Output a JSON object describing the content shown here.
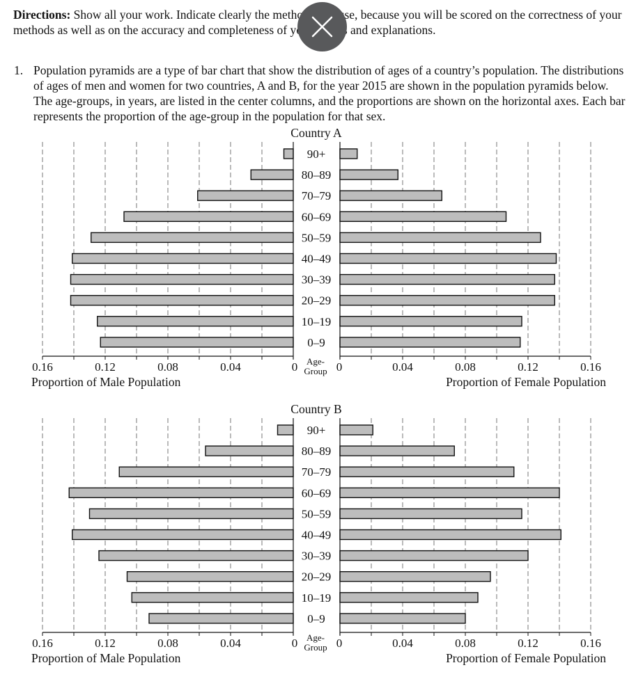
{
  "directions": {
    "label": "Directions:",
    "text": " Show all your work. Indicate clearly the methods you use, because you will be scored on the correctness of your methods as well as on the accuracy and completeness of your results and explanations."
  },
  "question": {
    "number": "1.",
    "text": "Population pyramids are a type of bar chart that show the distribution of ages of a country’s population. The distributions of ages of men and women for two countries, A and B, for the year 2015 are shown in the population pyramids below. The age-groups, in years, are listed in the center columns, and the proportions are shown on the horizontal axes. Each bar represents the proportion of the age-group in the population for that sex."
  },
  "overlay": {
    "icon": "close-icon",
    "color": "#58595b"
  },
  "chart_data": [
    {
      "type": "bar",
      "title": "Country A",
      "center_label": "Age-Group",
      "categories": [
        "90+",
        "80–89",
        "70–79",
        "60–69",
        "50–59",
        "40–49",
        "30–39",
        "20–29",
        "10–19",
        "0–9"
      ],
      "xlabel_left": "Proportion of Male Population",
      "xlabel_right": "Proportion of Female Population",
      "tick_labels_left": [
        "0.16",
        "0.12",
        "0.08",
        "0.04",
        "0"
      ],
      "tick_labels_right": [
        "0",
        "0.04",
        "0.08",
        "0.12",
        "0.16"
      ],
      "xlim": [
        0,
        0.16
      ],
      "grid": "dashed vertical every 0.02",
      "bar_color": "#bdbdbd",
      "series": [
        {
          "name": "Male",
          "values": [
            0.006,
            0.027,
            0.061,
            0.108,
            0.129,
            0.141,
            0.142,
            0.142,
            0.125,
            0.123
          ]
        },
        {
          "name": "Female",
          "values": [
            0.011,
            0.037,
            0.065,
            0.106,
            0.128,
            0.138,
            0.137,
            0.137,
            0.116,
            0.115
          ]
        }
      ]
    },
    {
      "type": "bar",
      "title": "Country B",
      "center_label": "Age-Group",
      "categories": [
        "90+",
        "80–89",
        "70–79",
        "60–69",
        "50–59",
        "40–49",
        "30–39",
        "20–29",
        "10–19",
        "0–9"
      ],
      "xlabel_left": "Proportion of Male Population",
      "xlabel_right": "Proportion of Female Population",
      "tick_labels_left": [
        "0.16",
        "0.12",
        "0.08",
        "0.04",
        "0"
      ],
      "tick_labels_right": [
        "0",
        "0.04",
        "0.08",
        "0.12",
        "0.16"
      ],
      "xlim": [
        0,
        0.16
      ],
      "grid": "dashed vertical every 0.02",
      "bar_color": "#bdbdbd",
      "series": [
        {
          "name": "Male",
          "values": [
            0.01,
            0.056,
            0.111,
            0.143,
            0.13,
            0.141,
            0.124,
            0.106,
            0.103,
            0.092
          ]
        },
        {
          "name": "Female",
          "values": [
            0.021,
            0.073,
            0.111,
            0.14,
            0.116,
            0.141,
            0.12,
            0.096,
            0.088,
            0.08
          ]
        }
      ]
    }
  ]
}
